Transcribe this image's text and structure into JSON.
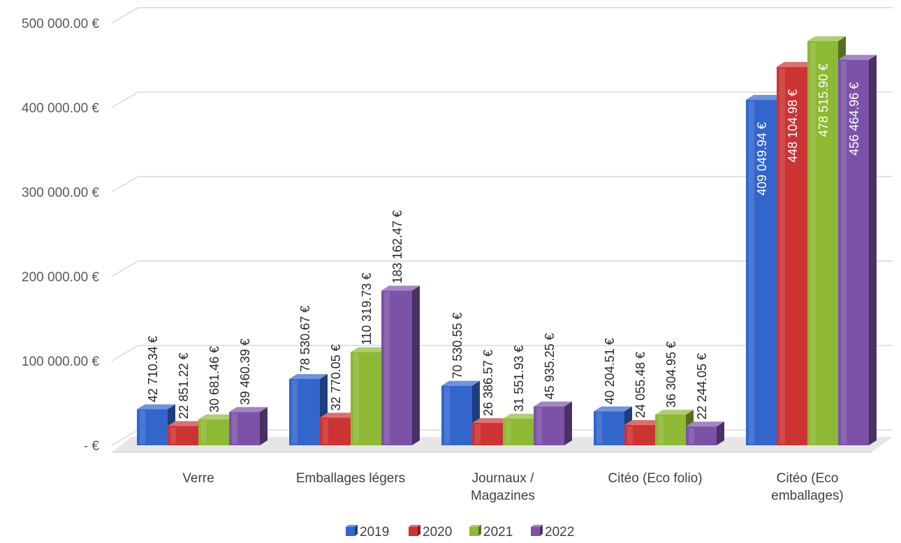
{
  "chart_data": {
    "type": "bar",
    "style": "3d-clustered-column",
    "categories": [
      "Verre",
      "Emballages légers",
      "Journaux / Magazines",
      "Citéo (Eco folio)",
      "Citéo (Eco emballages)"
    ],
    "category_lines": [
      [
        "Verre"
      ],
      [
        "Emballages légers"
      ],
      [
        "Journaux /",
        "Magazines"
      ],
      [
        "Citéo (Eco folio)"
      ],
      [
        "Citéo (Eco",
        "emballages)"
      ]
    ],
    "series": [
      {
        "name": "2019",
        "color": "#3366CC",
        "values": [
          42710.34,
          78530.67,
          70530.55,
          40204.51,
          409049.94
        ],
        "labels": [
          "42 710.34 €",
          "78 530.67 €",
          "70 530.55 €",
          "40 204.51 €",
          "409 049.94 €"
        ]
      },
      {
        "name": "2020",
        "color": "#CC3333",
        "values": [
          22851.22,
          32770.05,
          26386.57,
          24055.48,
          448104.98
        ],
        "labels": [
          "22 851.22 €",
          "32 770.05 €",
          "26 386.57 €",
          "24 055.48 €",
          "448 104.98 €"
        ]
      },
      {
        "name": "2021",
        "color": "#8DB934",
        "values": [
          30681.46,
          110319.73,
          31551.93,
          36304.95,
          478515.9
        ],
        "labels": [
          "30 681.46 €",
          "110 319.73 €",
          "31 551.93 €",
          "36 304.95 €",
          "478 515.90 €"
        ]
      },
      {
        "name": "2022",
        "color": "#7B52A8",
        "values": [
          39460.39,
          183162.47,
          45935.25,
          22244.05,
          456464.96
        ],
        "labels": [
          "39 460.39 €",
          "183 162.47 €",
          "45 935.25 €",
          "22 244.05 €",
          "456 464.96 €"
        ]
      }
    ],
    "y_ticks": [
      {
        "value": 0,
        "label": "-   €"
      },
      {
        "value": 100000,
        "label": "100 000.00 €"
      },
      {
        "value": 200000,
        "label": "200 000.00 €"
      },
      {
        "value": 300000,
        "label": "300 000.00 €"
      },
      {
        "value": 400000,
        "label": "400 000.00 €"
      },
      {
        "value": 500000,
        "label": "500 000.00 €"
      }
    ],
    "ylim": [
      0,
      500000
    ],
    "grid": true,
    "legend_position": "bottom"
  }
}
